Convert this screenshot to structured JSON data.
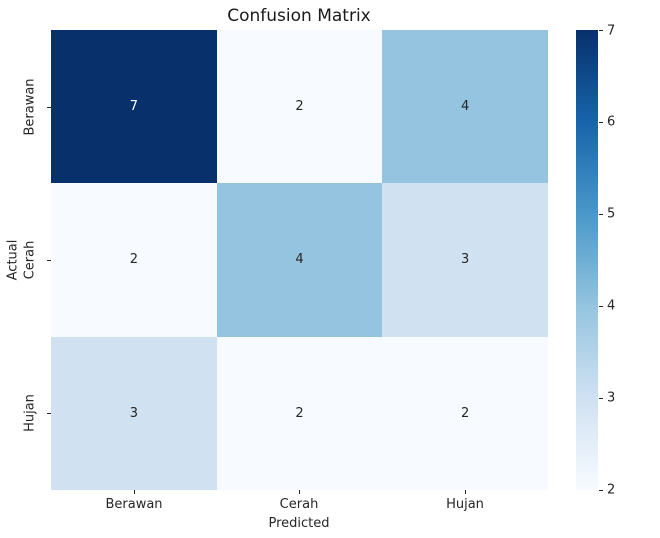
{
  "colors": {
    "background": "#ffffff",
    "title_text": "#1a1a1a",
    "label_text": "#262626",
    "annotation_light": "#ffffff",
    "annotation_dark": "#262626"
  },
  "chart_data": {
    "type": "heatmap",
    "title": "Confusion Matrix",
    "xlabel": "Predicted",
    "ylabel": "Actual",
    "x_categories": [
      "Berawan",
      "Cerah",
      "Hujan"
    ],
    "y_categories": [
      "Berawan",
      "Cerah",
      "Hujan"
    ],
    "matrix": [
      [
        7,
        2,
        4
      ],
      [
        2,
        4,
        3
      ],
      [
        3,
        2,
        2
      ]
    ],
    "vmin": 2,
    "vmax": 7,
    "colormap": "Blues",
    "legend_position": "right-colorbar",
    "grid": false,
    "cell_colors": [
      [
        "#08306b",
        "#f7fbff",
        "#94c4df"
      ],
      [
        "#f7fbff",
        "#94c4df",
        "#d0e1f2"
      ],
      [
        "#d0e1f2",
        "#f7fbff",
        "#f7fbff"
      ]
    ],
    "cell_text_colors": [
      [
        "#ffffff",
        "#262626",
        "#262626"
      ],
      [
        "#262626",
        "#262626",
        "#262626"
      ],
      [
        "#262626",
        "#262626",
        "#262626"
      ]
    ],
    "colorbar": {
      "ticks": [
        "7",
        "6",
        "5",
        "4",
        "3",
        "2"
      ],
      "stops_top_to_bottom": [
        "#08306b",
        "#1764ab",
        "#4a98c9",
        "#94c4df",
        "#d0e1f2",
        "#f7fbff"
      ]
    }
  }
}
